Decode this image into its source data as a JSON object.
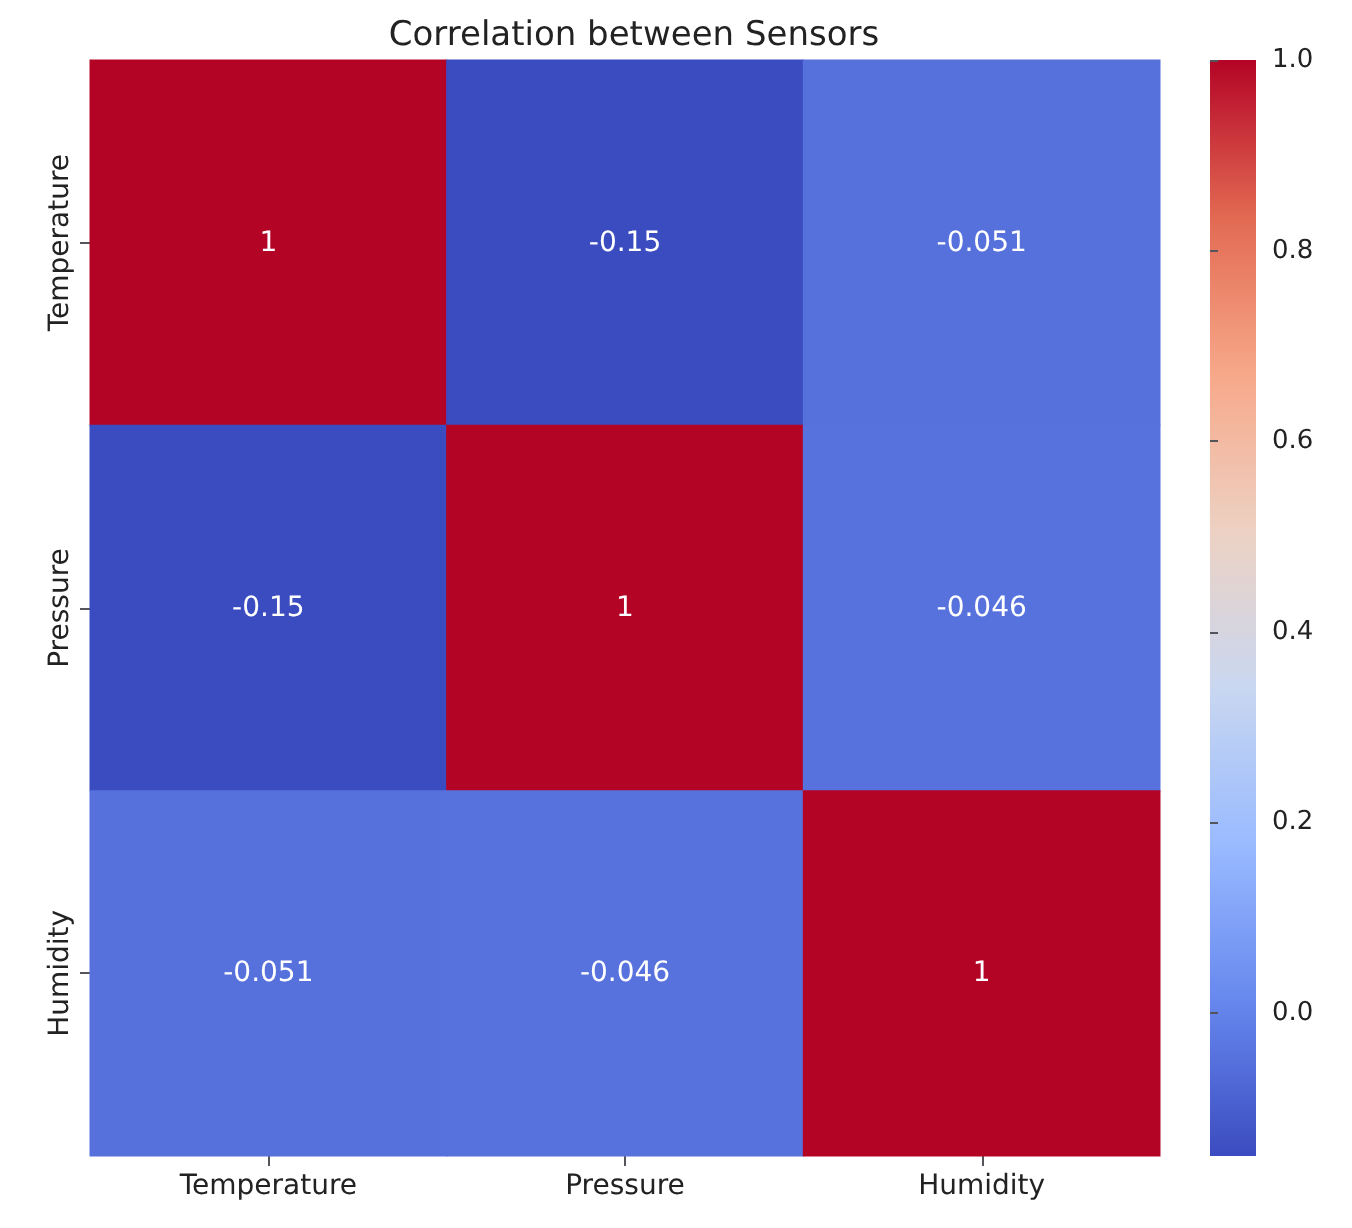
{
  "chart_data": {
    "type": "heatmap",
    "title": "Correlation between Sensors",
    "categories": [
      "Temperature",
      "Pressure",
      "Humidity"
    ],
    "y_categories": [
      "Temperature",
      "Pressure",
      "Humidity"
    ],
    "cells": [
      [
        1,
        -0.15,
        -0.051
      ],
      [
        -0.15,
        1,
        -0.046
      ],
      [
        -0.051,
        -0.046,
        1
      ]
    ],
    "clim": [
      -0.15,
      1
    ],
    "cticks": [
      {
        "value": 0,
        "label": "0.0"
      },
      0.2,
      0.4,
      0.6,
      0.8,
      {
        "value": 1,
        "label": "1.0"
      }
    ],
    "data_labels": true
  }
}
